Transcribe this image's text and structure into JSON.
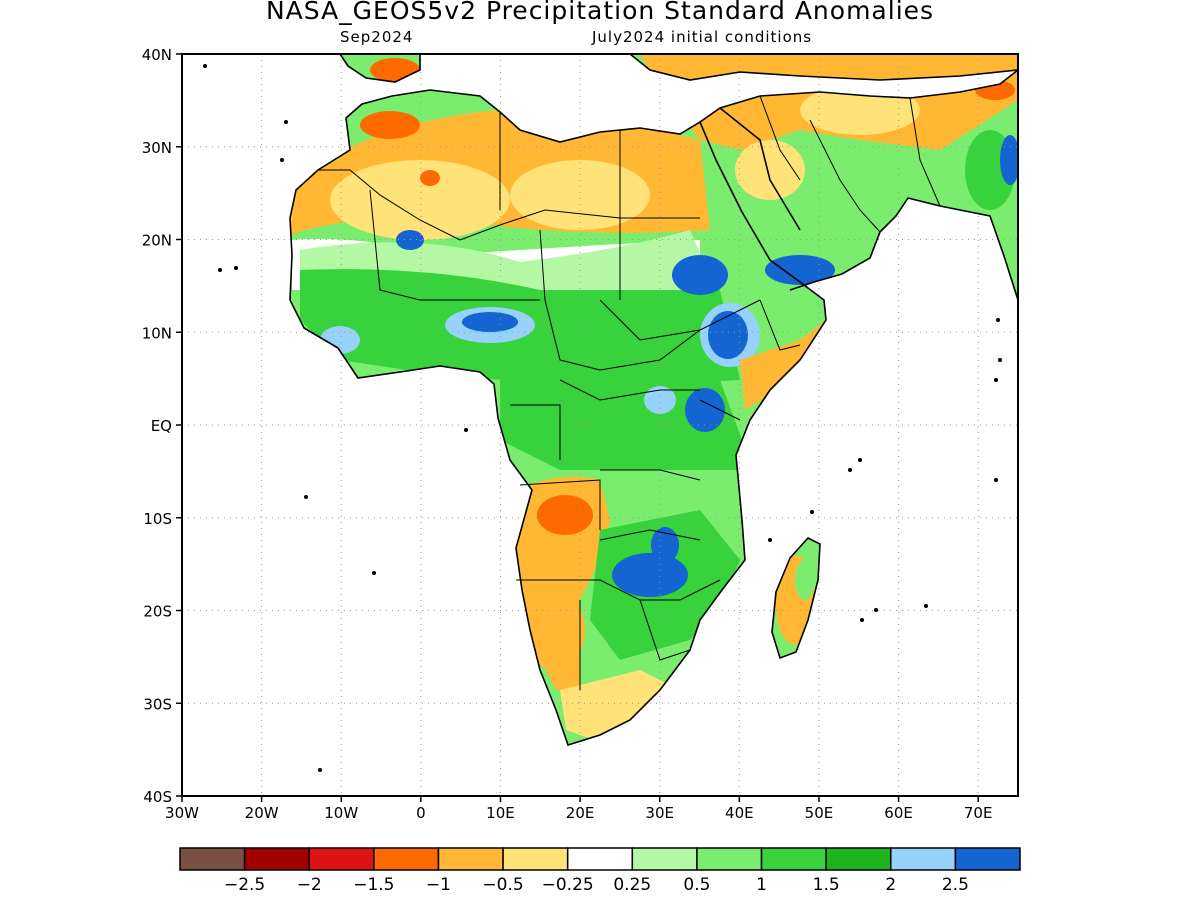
{
  "header": {
    "title": "NASA_GEOS5v2 Precipitation Standard Anomalies",
    "valid_month": "Sep2024",
    "init_conditions": "July2024 initial conditions"
  },
  "map": {
    "lon_range": [
      -30,
      75
    ],
    "lat_range": [
      -40,
      40
    ],
    "lat_labels": [
      {
        "lat": 40,
        "text": "40N"
      },
      {
        "lat": 30,
        "text": "30N"
      },
      {
        "lat": 20,
        "text": "20N"
      },
      {
        "lat": 10,
        "text": "10N"
      },
      {
        "lat": 0,
        "text": "EQ"
      },
      {
        "lat": -10,
        "text": "10S"
      },
      {
        "lat": -20,
        "text": "20S"
      },
      {
        "lat": -30,
        "text": "30S"
      },
      {
        "lat": -40,
        "text": "40S"
      }
    ],
    "lon_labels": [
      {
        "lon": -30,
        "text": "30W"
      },
      {
        "lon": -20,
        "text": "20W"
      },
      {
        "lon": -10,
        "text": "10W"
      },
      {
        "lon": 0,
        "text": "0"
      },
      {
        "lon": 10,
        "text": "10E"
      },
      {
        "lon": 20,
        "text": "20E"
      },
      {
        "lon": 30,
        "text": "30E"
      },
      {
        "lon": 40,
        "text": "40E"
      },
      {
        "lon": 50,
        "text": "50E"
      },
      {
        "lon": 60,
        "text": "60E"
      },
      {
        "lon": 70,
        "text": "70E"
      }
    ],
    "grid": true
  },
  "colorbar": {
    "colors": [
      "#7a5046",
      "#a30000",
      "#de1414",
      "#ff6a00",
      "#ffb734",
      "#ffe278",
      "#ffffff",
      "#b4f8a6",
      "#7aed6e",
      "#37d23c",
      "#1eb41e",
      "#96d2fa",
      "#1464d2"
    ],
    "labels": [
      "-2.5",
      "-2",
      "-1.5",
      "-1",
      "-0.5",
      "-0.25",
      "0.25",
      "0.5",
      "1",
      "1.5",
      "2",
      "2.5"
    ]
  }
}
